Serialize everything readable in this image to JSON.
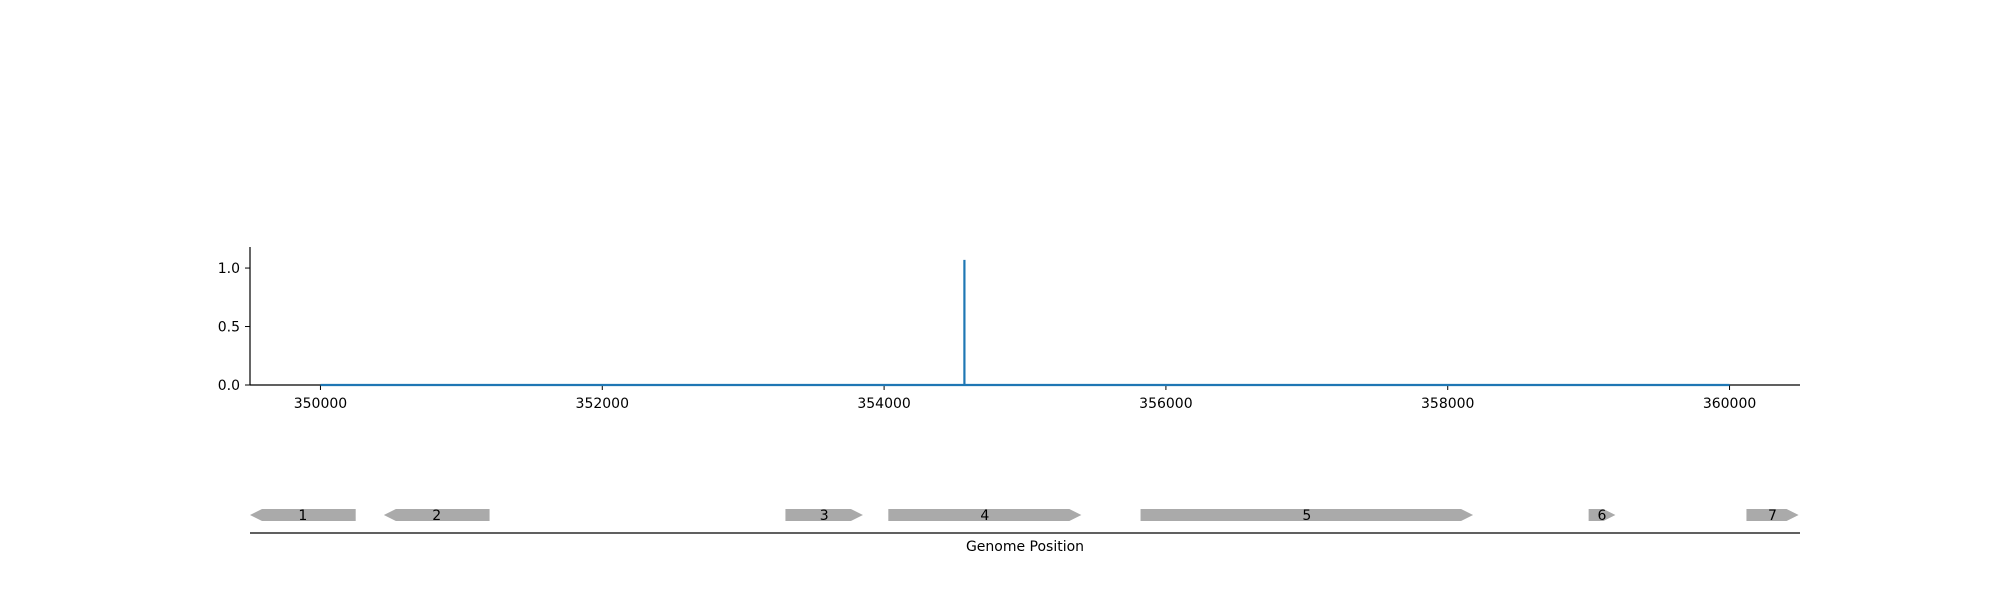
{
  "chart_data": {
    "type": "line",
    "title": "",
    "xlabel": "",
    "ylabel": "",
    "xlim": [
      349500,
      360500
    ],
    "ylim": [
      0,
      1.18
    ],
    "x_ticks": [
      350000,
      352000,
      354000,
      356000,
      358000,
      360000
    ],
    "y_ticks": [
      0.0,
      0.5,
      1.0
    ],
    "x_tick_labels": [
      "350000",
      "352000",
      "354000",
      "356000",
      "358000",
      "360000"
    ],
    "y_tick_labels": [
      "0.0",
      "0.5",
      "1.0"
    ],
    "grid": false,
    "series": [
      {
        "color": "#1f77b4",
        "x": [
          350000,
          354570,
          354570,
          354570,
          360000
        ],
        "y": [
          0,
          0,
          1.07,
          0,
          0
        ]
      }
    ]
  },
  "gene_track": {
    "xlabel": "Genome Position",
    "xlim": [
      349500,
      360500
    ],
    "color": "#aaaaaa",
    "genes": [
      {
        "label": "1",
        "start": 349500,
        "end": 350250,
        "strand": "-"
      },
      {
        "label": "2",
        "start": 350450,
        "end": 351200,
        "strand": "-"
      },
      {
        "label": "3",
        "start": 353300,
        "end": 353850,
        "strand": "+"
      },
      {
        "label": "4",
        "start": 354030,
        "end": 355400,
        "strand": "+"
      },
      {
        "label": "5",
        "start": 355820,
        "end": 358180,
        "strand": "+"
      },
      {
        "label": "6",
        "start": 359000,
        "end": 359190,
        "strand": "+"
      },
      {
        "label": "7",
        "start": 360120,
        "end": 360490,
        "strand": "+"
      }
    ]
  }
}
